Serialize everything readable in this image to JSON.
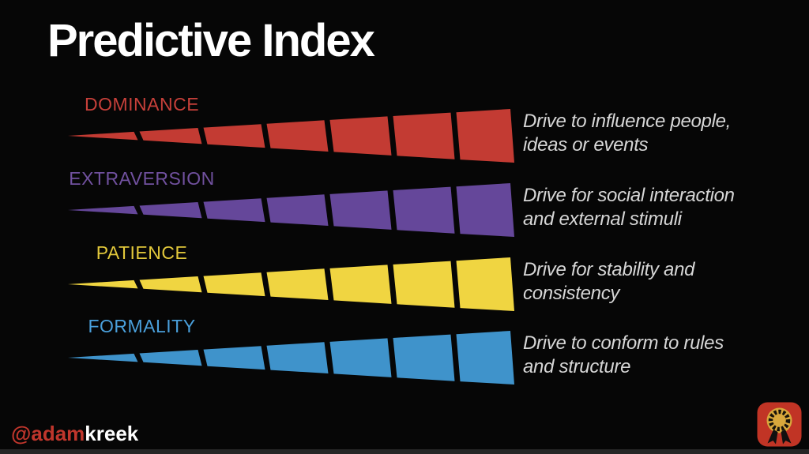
{
  "title": "Predictive Index",
  "rows": [
    {
      "id": "dominance",
      "label": "DOMINANCE",
      "color": "#C33B33",
      "label_color": "#C7403A",
      "desc_lines": [
        "Drive to influence people,",
        "ideas or events"
      ]
    },
    {
      "id": "extraversion",
      "label": "EXTRAVERSION",
      "color": "#65479A",
      "label_color": "#71519F",
      "desc_lines": [
        "Drive for social interaction",
        "and external stimuli"
      ]
    },
    {
      "id": "patience",
      "label": "PATIENCE",
      "color": "#F0D541",
      "label_color": "#E2C83B",
      "desc_lines": [
        "Drive for stability and",
        "consistency"
      ]
    },
    {
      "id": "formality",
      "label": "FORMALITY",
      "color": "#3F93CB",
      "label_color": "#4AA0DC",
      "desc_lines": [
        "Drive to conform to rules",
        "and structure"
      ]
    }
  ],
  "wedge": {
    "segments": 7
  },
  "footer": {
    "handle_prefix": "@adam",
    "handle_suffix": "kreek"
  },
  "logo": {
    "name": "medal-badge",
    "bg": "#C13425",
    "medal_gold": "#D9A83C",
    "wreath": "#17130B",
    "ribbon": "#101010"
  },
  "colors": {
    "background": "#060606",
    "title": "#FFFFFF",
    "description": "#D6D6D6",
    "bottom_bar": "#262626"
  }
}
